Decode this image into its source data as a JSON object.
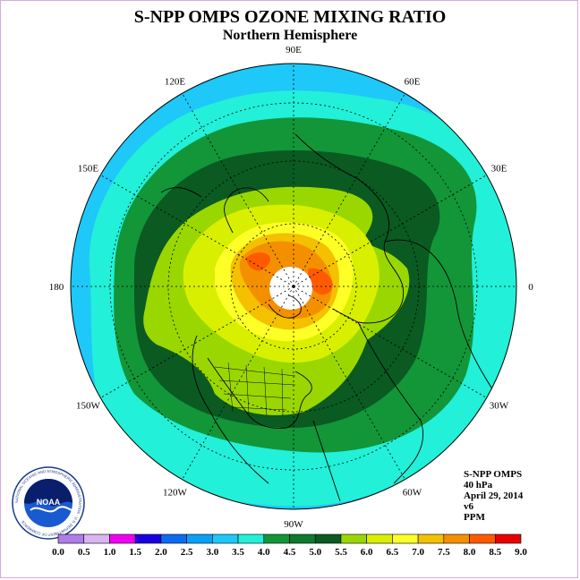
{
  "header": {
    "title": "S-NPP OMPS OZONE MIXING RATIO",
    "subtitle": "Northern Hemisphere"
  },
  "map": {
    "projection": "north-polar-stereographic",
    "longitude_labels": [
      "90E",
      "60E",
      "30E",
      "0",
      "30W",
      "60W",
      "90W",
      "120W",
      "150W",
      "180",
      "150E",
      "120E"
    ],
    "colors": {
      "ocean_edge": "#1ec8f8",
      "cyan": "#22f0d8",
      "dark_green": "#0a5a22",
      "green": "#129638",
      "lime": "#9ad700",
      "yellow_green": "#d8f000",
      "yellow": "#ffff28",
      "gold": "#f4c000",
      "orange": "#f49000",
      "red_orange": "#ff5a00",
      "missing_data": "#ffffff"
    }
  },
  "info_block": {
    "instrument": "S-NPP OMPS",
    "level": "40 hPa",
    "date": "April 29, 2014",
    "version": "v6",
    "units": "PPM"
  },
  "colorbar": {
    "labels": [
      "0.0",
      "0.5",
      "1.0",
      "1.5",
      "2.0",
      "2.5",
      "3.0",
      "3.5",
      "4.0",
      "4.5",
      "5.0",
      "5.5",
      "6.0",
      "6.5",
      "7.0",
      "7.5",
      "8.0",
      "8.5",
      "9.0"
    ],
    "colors": [
      "#b07ce8",
      "#d8b4f0",
      "#f000f0",
      "#1a00e0",
      "#0a6cf0",
      "#0aa0f8",
      "#1ec8f8",
      "#22f0d8",
      "#129638",
      "#0e7a2c",
      "#0a5a22",
      "#9ad700",
      "#d8f000",
      "#ffff28",
      "#f4c000",
      "#f49000",
      "#ff5a00",
      "#e80000",
      "#8b5a3c"
    ]
  },
  "logo": {
    "text": "NOAA",
    "ring_text": "NATIONAL OCEANIC AND ATMOSPHERIC ADMINISTRATION · U.S. DEPARTMENT OF COMMERCE"
  }
}
